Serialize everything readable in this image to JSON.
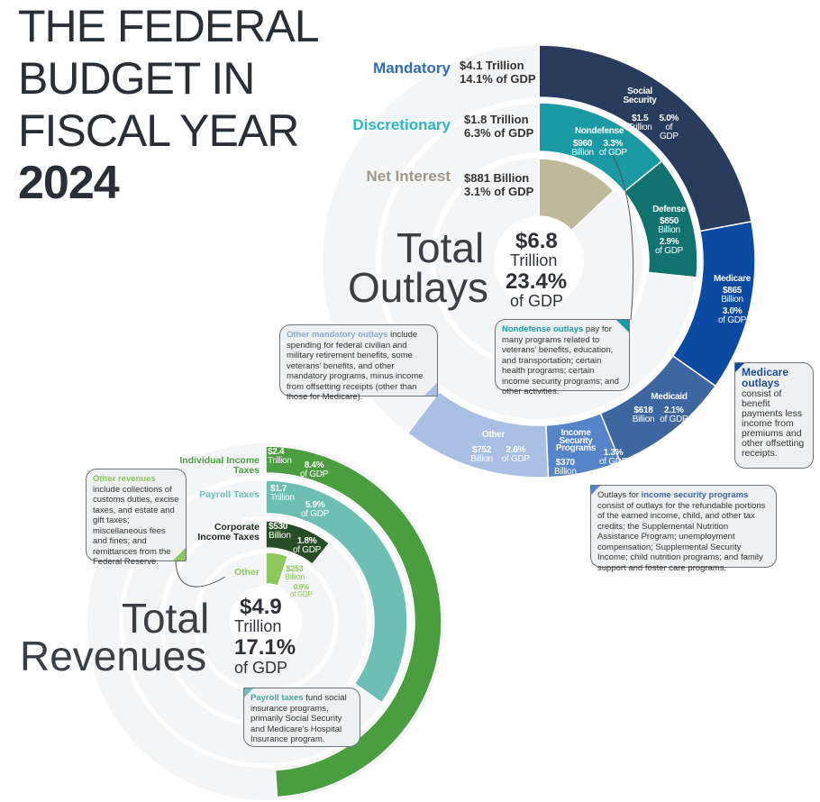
{
  "title": {
    "lines": [
      "THE FEDERAL",
      "BUDGET IN",
      "FISCAL YEAR"
    ],
    "year": "2024"
  },
  "outlays": {
    "total_word1": "Total",
    "total_word2": "Outlays",
    "total_value": "$6.8",
    "total_unit": "Trillion",
    "total_pct": "23.4%",
    "total_pct_unit": "of GDP",
    "groups": [
      {
        "label": "Mandatory",
        "amount": "$4.1 Trillion",
        "pct": "14.1% of GDP",
        "color": "#2f6db5"
      },
      {
        "label": "Discretionary",
        "amount": "$1.8 Trillion",
        "pct": "6.3% of GDP",
        "color": "#2fb6c0"
      },
      {
        "label": "Net Interest",
        "amount": "$881 Billion",
        "pct": "3.1% of GDP",
        "color": "#9d9a86"
      }
    ],
    "mandatory": [
      {
        "name": "Social Security",
        "value": 1.5,
        "amount": "$1.5",
        "unit": "Trillion",
        "pct": "5.0%",
        "pct_unit": "of GDP",
        "color": "#2a3c5e"
      },
      {
        "name": "Medicare",
        "value": 0.865,
        "amount": "$865",
        "unit": "Billion",
        "pct": "3.0%",
        "pct_unit": "of GDP",
        "color": "#0b4aa2"
      },
      {
        "name": "Medicaid",
        "value": 0.618,
        "amount": "$618",
        "unit": "Billion",
        "pct": "2.1%",
        "pct_unit": "of GDP",
        "color": "#3e66a0"
      },
      {
        "name": "Income Security Programs",
        "value": 0.37,
        "amount": "$370",
        "unit": "Billion",
        "pct": "1.3%",
        "pct_unit": "of GDP",
        "color": "#5585c8"
      },
      {
        "name": "Other",
        "value": 0.752,
        "amount": "$752",
        "unit": "Billion",
        "pct": "2.6%",
        "pct_unit": "of GDP",
        "color": "#a9bfe3"
      }
    ],
    "discretionary": [
      {
        "name": "Nondefense",
        "value": 0.96,
        "amount": "$960",
        "unit": "Billion",
        "pct": "3.3%",
        "pct_unit": "of GDP",
        "color": "#1b9aa3"
      },
      {
        "name": "Defense",
        "value": 0.85,
        "amount": "$850",
        "unit": "Billion",
        "pct": "2.9%",
        "pct_unit": "of GDP",
        "color": "#117270"
      }
    ],
    "net_interest": {
      "value": 0.881,
      "color": "#bfb89a"
    },
    "total_value_num": 6.8,
    "callouts": {
      "other_mandatory": {
        "head": "Other mandatory outlays",
        "text": " include spending for federal civilian and military retirement benefits, some veterans' benefits, and other mandatory programs, minus income from offsetting receipts (other than those for Medicare)."
      },
      "nondefense": {
        "head": "Nondefense outlays",
        "text": " pay for many programs related to veterans' benefits, education, and transportation; certain health programs; certain income security programs; and other activities."
      },
      "medicare": {
        "head": "Medicare outlays",
        "text": " consist of benefit payments less income from premiums and other offsetting receipts."
      },
      "income_security": {
        "pre": "Outlays for ",
        "head": "income security programs",
        "text": " consist of outlays for the refundable portions of the earned income, child, and other tax credits; the Supplemental Nutrition Assistance Program; unemployment compensation; Supplemental Security Income; child nutrition programs; and family support and foster care programs."
      }
    }
  },
  "revenues": {
    "total_word1": "Total",
    "total_word2": "Revenues",
    "total_value": "$4.9",
    "total_unit": "Trillion",
    "total_pct": "17.1%",
    "total_pct_unit": "of GDP",
    "total_value_num": 4.9,
    "sources": [
      {
        "name": "Individual Income Taxes",
        "value": 2.4,
        "amount": "$2.4",
        "unit": "Trillion",
        "pct": "8.4%",
        "pct_unit": "of GDP",
        "color": "#4a9e3f",
        "label_color": "#4a9e3f"
      },
      {
        "name": "Payroll Taxes",
        "value": 1.7,
        "amount": "$1.7",
        "unit": "Trillion",
        "pct": "5.9%",
        "pct_unit": "of GDP",
        "color": "#6dbfb4",
        "label_color": "#6dbfb4"
      },
      {
        "name": "Corporate Income Taxes",
        "value": 0.53,
        "amount": "$530",
        "unit": "Billion",
        "pct": "1.8%",
        "pct_unit": "of GDP",
        "color": "#264d26",
        "label_color": "#1f2a1f"
      },
      {
        "name": "Other",
        "value": 0.253,
        "amount": "$253",
        "unit": "Billion",
        "pct": "0.9%",
        "pct_unit": "of GDP",
        "color": "#8dc85e",
        "label_color": "#8dc85e"
      }
    ],
    "callouts": {
      "other": {
        "head": "Other revenues",
        "text": " include collections of customs duties, excise taxes, and estate and gift taxes; miscellaneous fees and fines; and remittances from the Federal Reserve."
      },
      "payroll": {
        "head": "Payroll taxes",
        "text": " fund social insurance programs, primarily Social Security and Medicare's Hospital Insurance program."
      }
    }
  }
}
